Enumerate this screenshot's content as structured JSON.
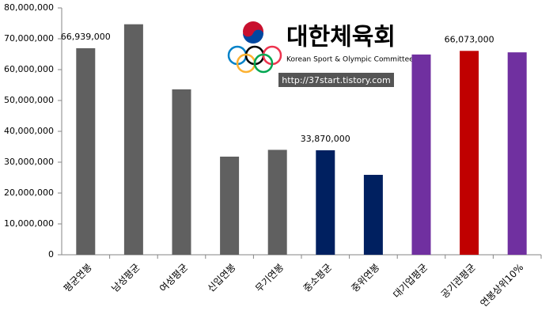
{
  "chart_data": {
    "type": "bar",
    "categories": [
      "평균연봉",
      "남성평균",
      "여성평균",
      "신입연봉",
      "무기연봉",
      "중소평균",
      "중위연봉",
      "대기업평균",
      "공기관평균",
      "연봉상위10%"
    ],
    "values": [
      66939000,
      74700000,
      53600000,
      31800000,
      34000000,
      33870000,
      25900000,
      64900000,
      66073000,
      65600000
    ],
    "value_labels": [
      "66,939,000",
      null,
      null,
      null,
      null,
      "33,870,000",
      null,
      null,
      "66,073,000",
      null
    ],
    "colors": [
      "#606060",
      "#606060",
      "#606060",
      "#606060",
      "#606060",
      "#002060",
      "#002060",
      "#7030a0",
      "#c00000",
      "#7030a0"
    ],
    "ylim": [
      0,
      80000000
    ],
    "yticks": [
      0,
      {
        "value": 10000000,
        "label": "10,000,000"
      },
      {
        "value": 20000000,
        "label": "20,000,000"
      },
      {
        "value": 30000000,
        "label": "30,000,000"
      },
      {
        "value": 40000000,
        "label": "40,000,000"
      },
      {
        "value": 50000000,
        "label": "50,000,000"
      },
      {
        "value": 60000000,
        "label": "60,000,000"
      },
      {
        "value": 70000000,
        "label": "70,000,000"
      },
      {
        "value": 80000000,
        "label": "80,000,000"
      }
    ]
  },
  "logo": {
    "name": "대한체육회",
    "subtitle": "Korean Sport & Olympic Committee",
    "url": "http://37start.tistory.com"
  }
}
